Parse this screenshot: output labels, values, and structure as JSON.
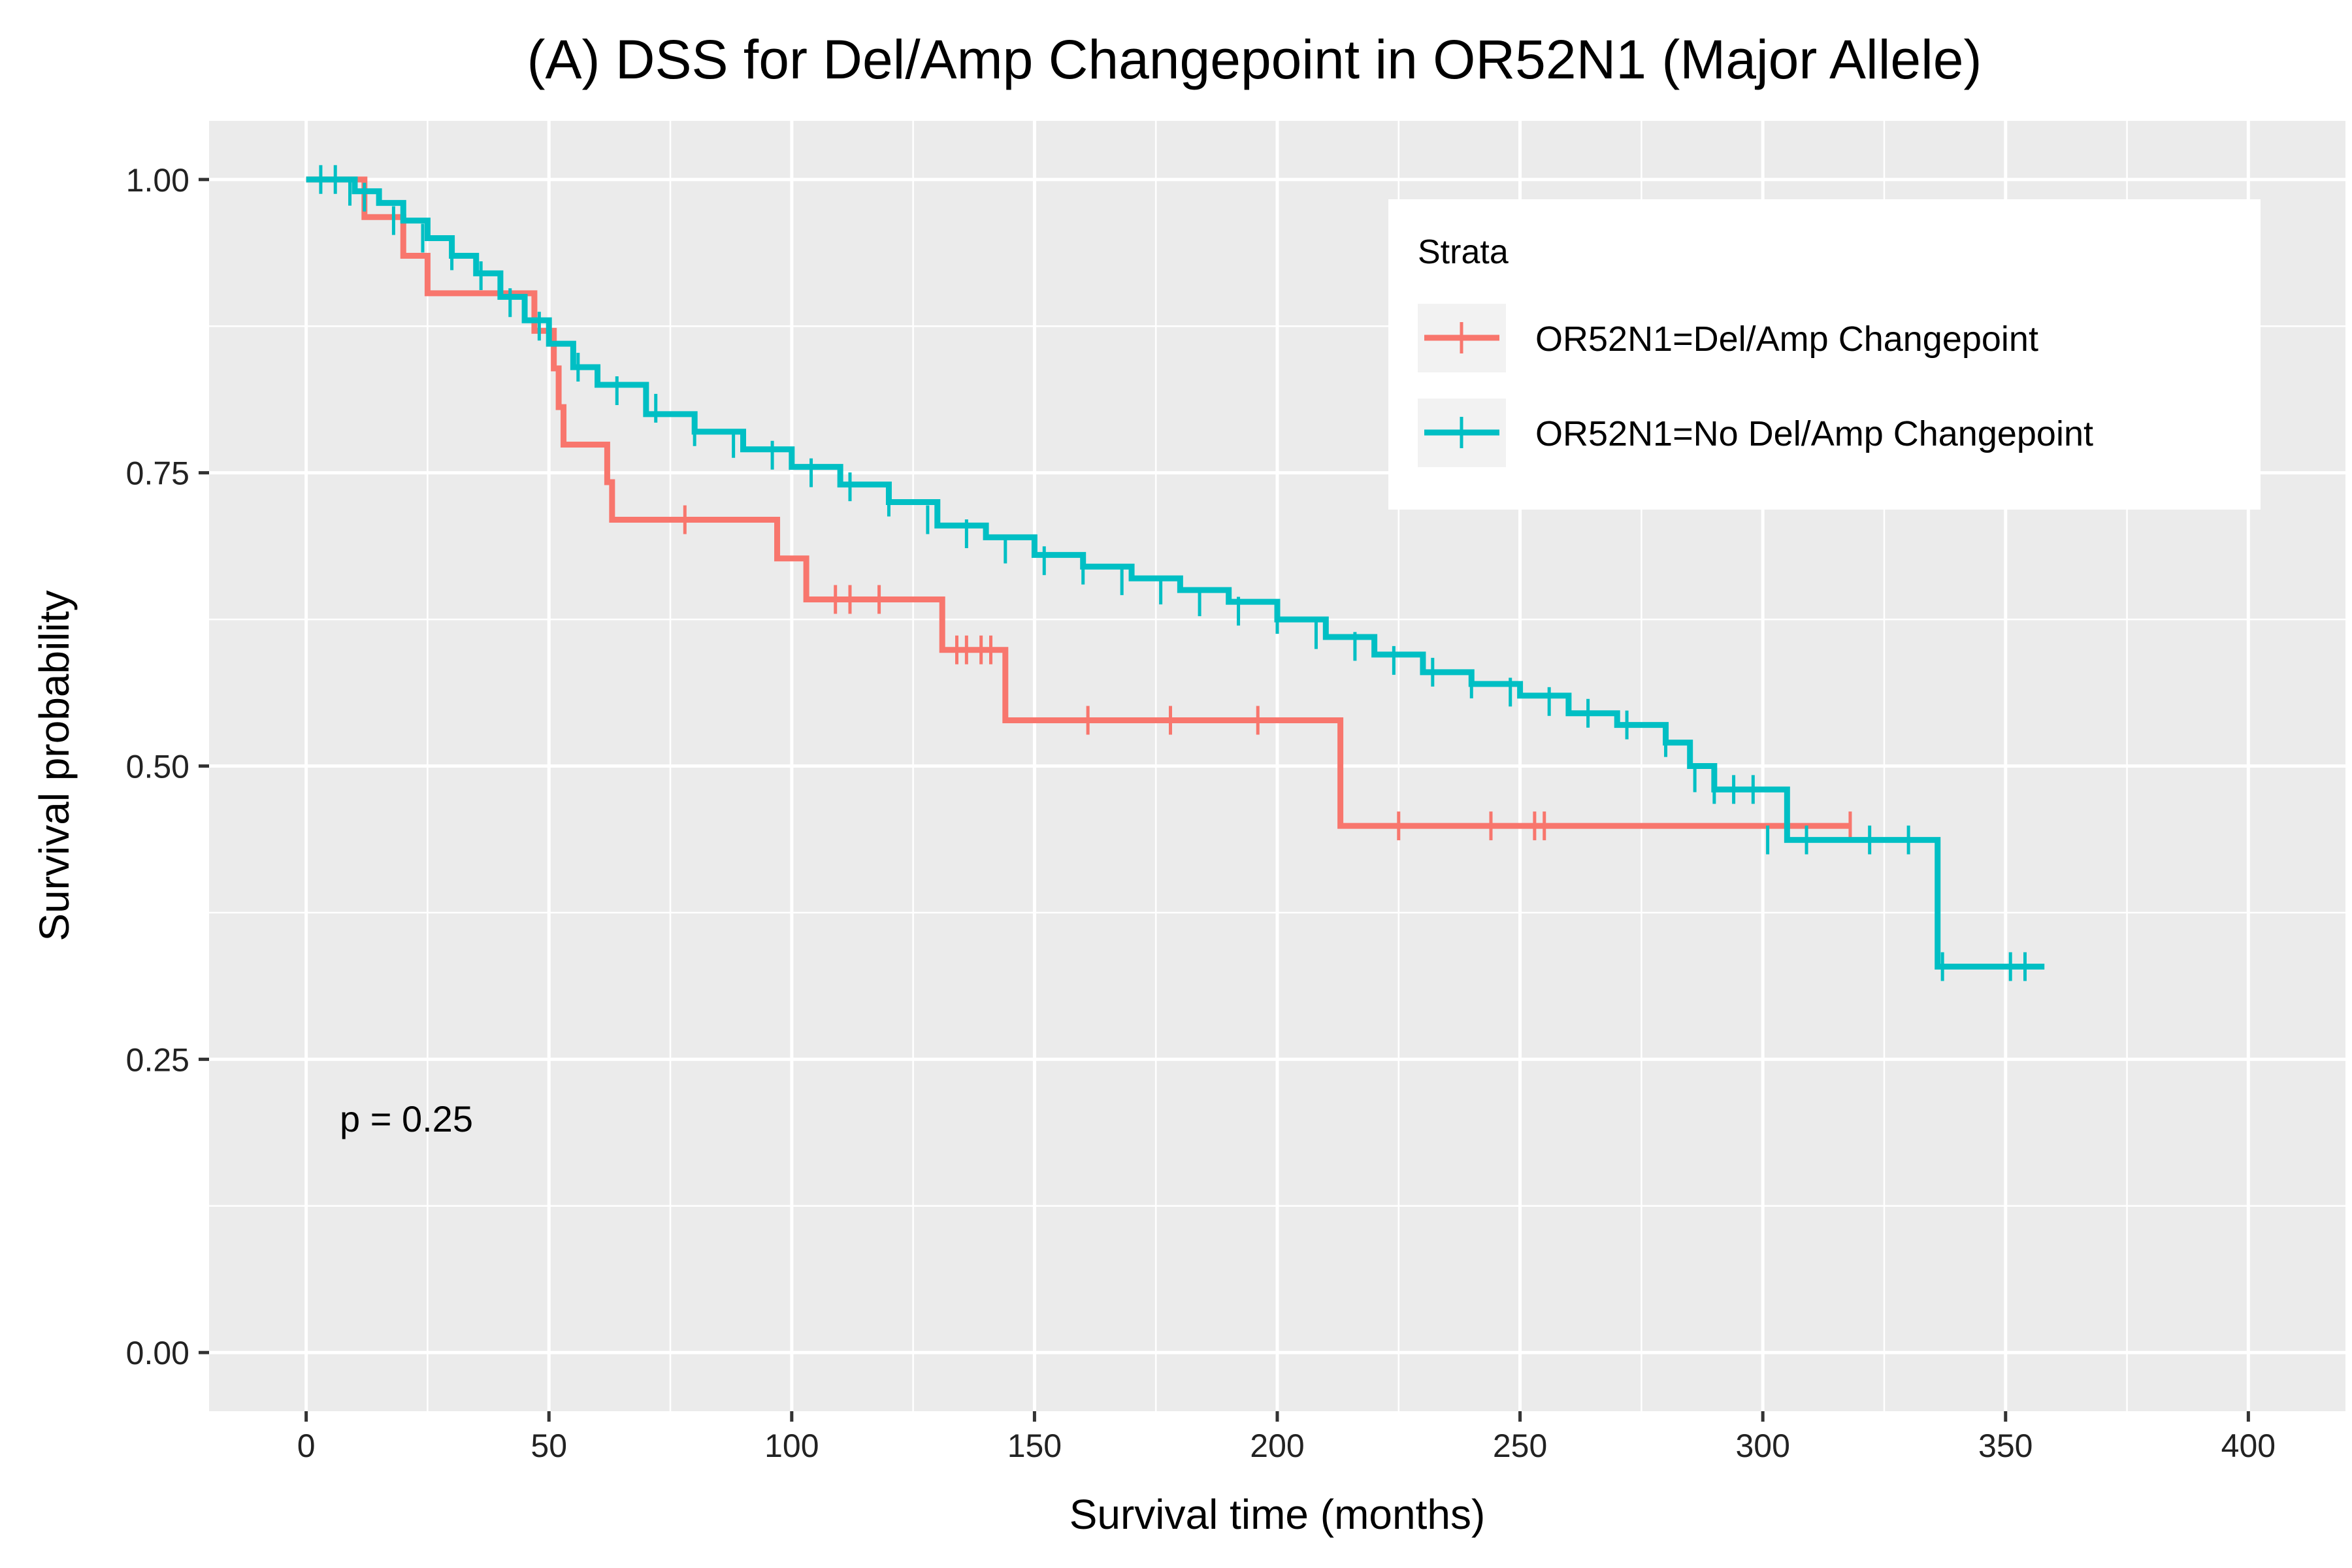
{
  "chart_data": {
    "type": "line",
    "title": "(A) DSS for Del/Amp Changepoint in OR52N1 (Major Allele)",
    "xlabel": "Survival time (months)",
    "ylabel": "Survival probability",
    "xlim": [
      -20,
      420
    ],
    "ylim": [
      -0.05,
      1.05
    ],
    "x_ticks": [
      0,
      50,
      100,
      150,
      200,
      250,
      300,
      350,
      400
    ],
    "y_ticks": [
      0.0,
      0.25,
      0.5,
      0.75,
      1.0
    ],
    "x_tick_labels": [
      "0",
      "50",
      "100",
      "150",
      "200",
      "250",
      "300",
      "350",
      "400"
    ],
    "y_tick_labels": [
      "0.00",
      "0.25",
      "0.50",
      "0.75",
      "1.00"
    ],
    "grid": true,
    "legend_title": "Strata",
    "legend_position": "top-right",
    "annotation": "p = 0.25",
    "series": [
      {
        "name": "OR52N1=Del/Amp Changepoint",
        "color": "#F8766D",
        "step": true,
        "x": [
          0,
          10,
          12,
          20,
          25,
          47,
          51,
          52,
          53,
          62,
          63,
          97,
          103,
          131,
          144,
          213,
          318
        ],
        "y": [
          1.0,
          1.0,
          0.968,
          0.935,
          0.903,
          0.871,
          0.839,
          0.806,
          0.774,
          0.742,
          0.71,
          0.677,
          0.642,
          0.599,
          0.539,
          0.449,
          0.449
        ],
        "censor_x": [
          78,
          109,
          112,
          118,
          134,
          136,
          139,
          141,
          161,
          178,
          196,
          225,
          244,
          253,
          255,
          318
        ],
        "censor_y": [
          0.71,
          0.642,
          0.642,
          0.642,
          0.599,
          0.599,
          0.599,
          0.599,
          0.539,
          0.539,
          0.539,
          0.449,
          0.449,
          0.449,
          0.449,
          0.449
        ]
      },
      {
        "name": "OR52N1=No Del/Amp Changepoint",
        "color": "#00BFC4",
        "step": true,
        "x": [
          0,
          5,
          10,
          15,
          20,
          25,
          30,
          35,
          40,
          45,
          50,
          55,
          60,
          70,
          80,
          90,
          100,
          110,
          120,
          130,
          140,
          150,
          160,
          170,
          180,
          190,
          200,
          210,
          220,
          230,
          240,
          250,
          260,
          270,
          280,
          285,
          290,
          295,
          300,
          305,
          336,
          358
        ],
        "y": [
          1.0,
          1.0,
          0.99,
          0.98,
          0.965,
          0.95,
          0.935,
          0.92,
          0.9,
          0.88,
          0.86,
          0.84,
          0.825,
          0.8,
          0.785,
          0.77,
          0.755,
          0.74,
          0.725,
          0.705,
          0.695,
          0.68,
          0.67,
          0.66,
          0.65,
          0.64,
          0.625,
          0.61,
          0.595,
          0.58,
          0.57,
          0.56,
          0.545,
          0.535,
          0.52,
          0.5,
          0.48,
          0.48,
          0.48,
          0.437,
          0.329,
          0.329
        ],
        "censor_x": [
          3,
          6,
          9,
          12,
          18,
          24,
          30,
          36,
          42,
          48,
          56,
          64,
          72,
          80,
          88,
          96,
          104,
          112,
          120,
          128,
          136,
          144,
          152,
          160,
          168,
          176,
          184,
          192,
          200,
          208,
          216,
          224,
          232,
          240,
          248,
          256,
          264,
          272,
          280,
          286,
          290,
          294,
          298,
          301,
          309,
          322,
          330,
          337,
          351,
          354
        ],
        "censor_y": [
          1.0,
          1.0,
          0.99,
          0.985,
          0.965,
          0.95,
          0.935,
          0.918,
          0.895,
          0.875,
          0.84,
          0.82,
          0.805,
          0.785,
          0.775,
          0.765,
          0.75,
          0.738,
          0.725,
          0.71,
          0.698,
          0.685,
          0.675,
          0.667,
          0.658,
          0.65,
          0.64,
          0.632,
          0.625,
          0.612,
          0.602,
          0.59,
          0.58,
          0.57,
          0.563,
          0.555,
          0.545,
          0.535,
          0.52,
          0.49,
          0.48,
          0.48,
          0.48,
          0.437,
          0.437,
          0.437,
          0.437,
          0.329,
          0.329,
          0.329
        ]
      }
    ]
  }
}
